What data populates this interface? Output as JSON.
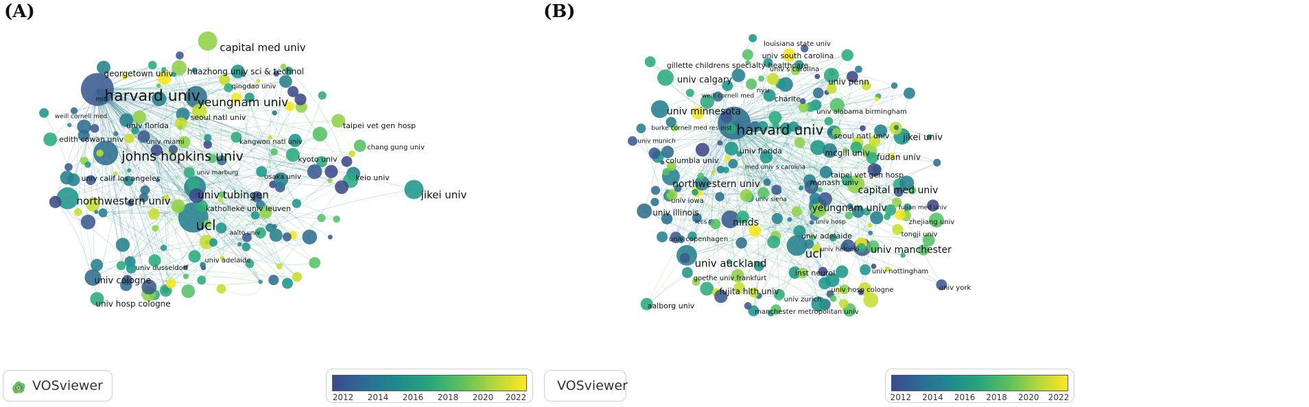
{
  "panels": [
    {
      "id": "A",
      "letter": "(A)",
      "software": "VOSviewer",
      "colorbar_ticks": [
        "2012",
        "2014",
        "2016",
        "2018",
        "2020",
        "2022"
      ],
      "labels": [
        "harvard univ",
        "capital med univ",
        "yeungnam univ",
        "johns hopkins univ",
        "jikei univ",
        "northwestern univ",
        "univ tubingen",
        "ucl",
        "georgetown univ",
        "huazhong univ sci & technol",
        "qingdao univ",
        "mit",
        "weill cornell med",
        "univ florida",
        "seoul natl univ",
        "taipei vet gen hosp",
        "edith cowan univ",
        "univ miami",
        "kangwon natl univ",
        "chang gung univ",
        "kyoto univ",
        "univ marburg",
        "univ calif los angeles",
        "osaka univ",
        "keio univ",
        "katholieke univ leuven",
        "aalto univ",
        "univ dusseldorf",
        "univ adelaide",
        "univ cologne",
        "univ hosp cologne"
      ]
    },
    {
      "id": "B",
      "letter": "(B)",
      "software": "VOSviewer",
      "colorbar_ticks": [
        "2012",
        "2014",
        "2016",
        "2018",
        "2020",
        "2022"
      ],
      "labels": [
        "louisiana state univ",
        "univ south carolina",
        "gillette childrens specialty healthcare",
        "univ s carolina",
        "univ calgary",
        "univ penn",
        "weill cornell med",
        "nyu",
        "charite",
        "univ minnesota",
        "univ alabama birmingham",
        "burke cornell med res inst",
        "harvard univ",
        "jikei univ",
        "univ munich",
        "seoul natl univ",
        "mcgill univ",
        "univ florida",
        "columbia univ",
        "fudan univ",
        "med univ s carolina",
        "taipei vet gen hosp",
        "northwestern univ",
        "monash univ",
        "capital med univ",
        "univ iowa",
        "univ siena",
        "yeungnam univ",
        "fujian med univ",
        "univ illinois",
        "ninds",
        "zhejiang univ",
        "iccs",
        "univ hosp",
        "tongji univ",
        "univ copenhagen",
        "univ adelaide",
        "univ helsinki",
        "ucl",
        "univ manchester",
        "univ auckland",
        "inst neurol",
        "univ nottingham",
        "goethe univ frankfurt",
        "univ york",
        "fujita hlth univ",
        "univ hosp cologne",
        "univ zurich",
        "aalborg univ",
        "manchester metropolitan univ"
      ]
    }
  ]
}
